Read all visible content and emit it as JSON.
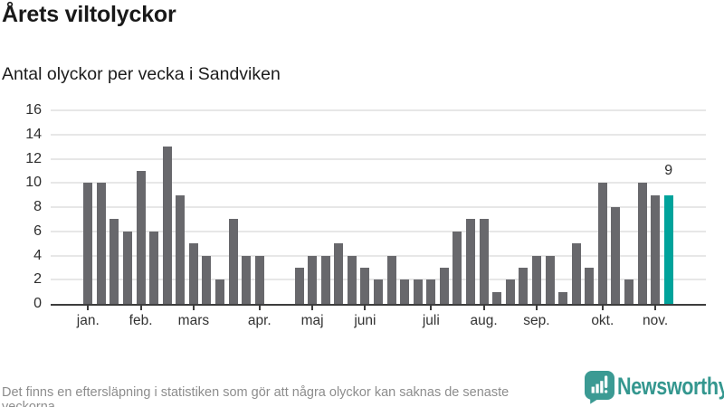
{
  "header": {
    "title": "Årets viltolyckor",
    "subtitle": "Antal olyckor per vecka i Sandviken"
  },
  "chart_data": {
    "type": "bar",
    "title": "Årets viltolyckor",
    "subtitle": "Antal olyckor per vecka i Sandviken",
    "x_unit": "vecka",
    "n_slots": 45,
    "values": [
      10,
      10,
      7,
      6,
      11,
      6,
      13,
      9,
      5,
      4,
      2,
      7,
      4,
      4,
      0,
      0,
      3,
      4,
      4,
      5,
      4,
      3,
      2,
      4,
      2,
      2,
      2,
      3,
      6,
      7,
      7,
      1,
      2,
      3,
      4,
      4,
      1,
      5,
      3,
      10,
      8,
      2,
      10,
      9,
      9
    ],
    "highlight_index": 44,
    "highlight_value_label": "9",
    "y_ticks": [
      0,
      2,
      4,
      6,
      8,
      10,
      12,
      14,
      16
    ],
    "ylim": [
      0,
      16
    ],
    "grid": true,
    "legend": false,
    "x_ticks": [
      {
        "label": "jan.",
        "slot": 1
      },
      {
        "label": "feb.",
        "slot": 5
      },
      {
        "label": "mars",
        "slot": 9
      },
      {
        "label": "apr.",
        "slot": 14
      },
      {
        "label": "maj",
        "slot": 18
      },
      {
        "label": "juni",
        "slot": 22
      },
      {
        "label": "juli",
        "slot": 27
      },
      {
        "label": "aug.",
        "slot": 31
      },
      {
        "label": "sep.",
        "slot": 35
      },
      {
        "label": "okt.",
        "slot": 40
      },
      {
        "label": "nov.",
        "slot": 44
      }
    ],
    "colors": {
      "bar": "#68686c",
      "highlight": "#00a39b",
      "grid": "#e7e7e7",
      "axis": "#3d3d3d"
    }
  },
  "footer": {
    "note": "Det finns en eftersläpning i statistiken som gör att några olyckor kan saknas de senaste veckorna.",
    "logo_text": "Newsworthy",
    "logo_color": "#34978f",
    "logo_icon_color": "#3b9a93"
  }
}
